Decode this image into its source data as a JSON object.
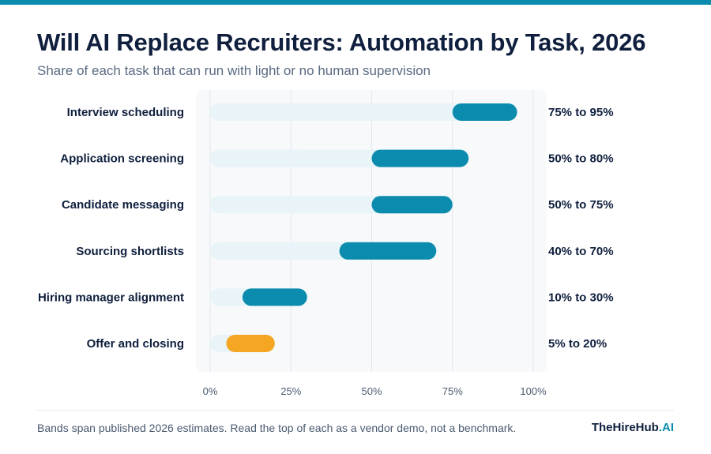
{
  "header": {
    "title": "Will AI Replace Recruiters: Automation by Task, 2026",
    "subtitle": "Share of each task that can run with light or no human supervision"
  },
  "footer": {
    "note": "Bands span published 2026 estimates. Read the top of each as a vendor demo, not a benchmark.",
    "brand_main": "TheHireHub",
    "brand_accent": ".AI"
  },
  "colors": {
    "band": "#0b8cae",
    "band_highlight": "#f5a623",
    "track": "#e8f4f8",
    "plot_bg": "#f7f9fb",
    "grid": "#e3e8ee",
    "label": "#0f1f3d",
    "tick": "#4a5a70"
  },
  "chart_data": {
    "type": "bar",
    "orientation": "horizontal",
    "subtype": "range",
    "title": "Will AI Replace Recruiters: Automation by Task, 2026",
    "subtitle": "Share of each task that can run with light or no human supervision",
    "xlim": [
      0,
      100
    ],
    "x_ticks": [
      "0%",
      "25%",
      "50%",
      "75%",
      "100%"
    ],
    "x_tick_values": [
      0,
      25,
      50,
      75,
      100
    ],
    "grid": true,
    "unit": "%",
    "categories": [
      "Interview scheduling",
      "Application screening",
      "Candidate messaging",
      "Sourcing shortlists",
      "Hiring manager alignment",
      "Offer and closing"
    ],
    "low": [
      75,
      50,
      50,
      40,
      10,
      5
    ],
    "high": [
      95,
      80,
      75,
      70,
      30,
      20
    ],
    "range_labels": [
      "75% to 95%",
      "50% to 80%",
      "50% to 75%",
      "40% to 70%",
      "10% to 30%",
      "5% to 20%"
    ],
    "highlight": [
      false,
      false,
      false,
      false,
      false,
      true
    ]
  }
}
